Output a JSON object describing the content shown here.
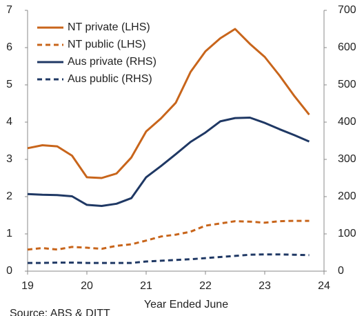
{
  "chart_data": {
    "type": "line",
    "x": [
      19,
      19.25,
      19.5,
      19.75,
      20,
      20.25,
      20.5,
      20.75,
      21,
      21.25,
      21.5,
      21.75,
      22,
      22.25,
      22.5,
      22.75,
      23,
      23.25,
      23.5,
      23.75
    ],
    "series": [
      {
        "name": "NT private (LHS)",
        "color": "#c8651b",
        "dashed": false,
        "axis": "y",
        "values": [
          3.3,
          3.38,
          3.35,
          3.1,
          2.52,
          2.5,
          2.62,
          3.05,
          3.75,
          4.1,
          4.52,
          5.35,
          5.9,
          6.25,
          6.5,
          6.1,
          5.75,
          5.25,
          4.7,
          4.2
        ]
      },
      {
        "name": "NT public (LHS)",
        "color": "#c8651b",
        "dashed": true,
        "axis": "y",
        "values": [
          0.58,
          0.62,
          0.58,
          0.65,
          0.63,
          0.6,
          0.68,
          0.72,
          0.82,
          0.93,
          0.98,
          1.06,
          1.22,
          1.28,
          1.34,
          1.33,
          1.3,
          1.34,
          1.35,
          1.35
        ]
      },
      {
        "name": "Aus private (RHS)",
        "color": "#1f3864",
        "dashed": false,
        "axis": "y2",
        "values": [
          207,
          205,
          204,
          201,
          178,
          175,
          181,
          196,
          252,
          282,
          314,
          347,
          372,
          402,
          411,
          412,
          398,
          381,
          365,
          348
        ]
      },
      {
        "name": "Aus public (RHS)",
        "color": "#1f3864",
        "dashed": true,
        "axis": "y2",
        "values": [
          22,
          22,
          23,
          23,
          22,
          22,
          22,
          22,
          26,
          28,
          30,
          32,
          35,
          38,
          41,
          44,
          45,
          45,
          44,
          43
        ]
      }
    ],
    "xlabel": "Year Ended June",
    "source": "Source: ABS & DITT",
    "xlim": [
      19,
      24
    ],
    "xticks": [
      19,
      20,
      21,
      22,
      23,
      24
    ],
    "ylim": [
      0,
      7
    ],
    "yticks": [
      0,
      1,
      2,
      3,
      4,
      5,
      6,
      7
    ],
    "y2lim": [
      0,
      700
    ],
    "y2ticks": [
      0,
      100,
      200,
      300,
      400,
      500,
      600,
      700
    ],
    "grid": false,
    "legend": "upper left"
  }
}
